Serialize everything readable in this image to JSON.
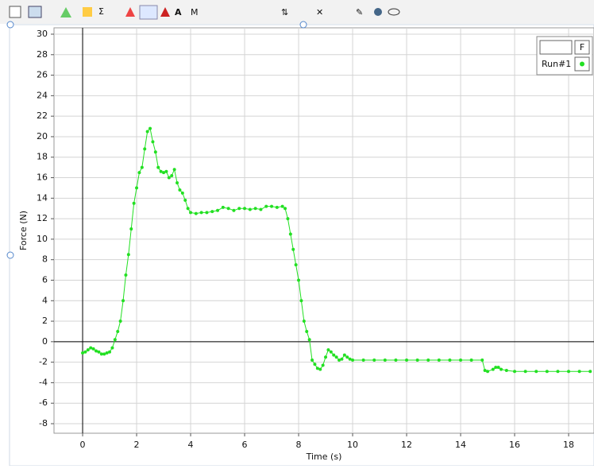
{
  "chart_data": {
    "type": "line",
    "xlabel": "Time (s)",
    "ylabel": "Force (N)",
    "legend_header": "F",
    "x": [
      0,
      0.1,
      0.2,
      0.3,
      0.4,
      0.5,
      0.6,
      0.7,
      0.8,
      0.9,
      1.0,
      1.1,
      1.2,
      1.3,
      1.4,
      1.5,
      1.6,
      1.7,
      1.8,
      1.9,
      2.0,
      2.1,
      2.2,
      2.3,
      2.4,
      2.5,
      2.6,
      2.7,
      2.8,
      2.9,
      3.0,
      3.1,
      3.2,
      3.3,
      3.4,
      3.5,
      3.6,
      3.7,
      3.8,
      3.9,
      4.0,
      4.2,
      4.4,
      4.6,
      4.8,
      5.0,
      5.2,
      5.4,
      5.6,
      5.8,
      6.0,
      6.2,
      6.4,
      6.6,
      6.8,
      7.0,
      7.2,
      7.4,
      7.5,
      7.6,
      7.7,
      7.8,
      7.9,
      8.0,
      8.1,
      8.2,
      8.3,
      8.4,
      8.5,
      8.6,
      8.7,
      8.8,
      8.9,
      9.0,
      9.1,
      9.2,
      9.3,
      9.4,
      9.5,
      9.6,
      9.7,
      9.8,
      9.9,
      10.0,
      10.4,
      10.8,
      11.2,
      11.6,
      12.0,
      12.4,
      12.8,
      13.2,
      13.6,
      14.0,
      14.4,
      14.8,
      14.9,
      15.0,
      15.2,
      15.3,
      15.4,
      15.5,
      15.7,
      16.0,
      16.4,
      16.8,
      17.2,
      17.6,
      18.0,
      18.4,
      18.8
    ],
    "series": [
      {
        "name": "Run#1",
        "color": "#22e022",
        "values": [
          -1.1,
          -1.0,
          -0.8,
          -0.6,
          -0.7,
          -0.9,
          -1.0,
          -1.2,
          -1.2,
          -1.1,
          -1.0,
          -0.6,
          0.2,
          1.0,
          2.0,
          4.0,
          6.5,
          8.5,
          11.0,
          13.5,
          15.0,
          16.5,
          17.0,
          18.8,
          20.5,
          20.8,
          19.5,
          18.5,
          17.0,
          16.6,
          16.5,
          16.6,
          16.0,
          16.2,
          16.8,
          15.5,
          14.8,
          14.5,
          13.8,
          13.0,
          12.6,
          12.5,
          12.6,
          12.6,
          12.7,
          12.8,
          13.1,
          13.0,
          12.8,
          13.0,
          13.0,
          12.9,
          13.0,
          12.9,
          13.2,
          13.2,
          13.1,
          13.2,
          13.0,
          12.0,
          10.5,
          9.0,
          7.5,
          6.0,
          4.0,
          2.0,
          1.0,
          0.2,
          -1.8,
          -2.2,
          -2.6,
          -2.7,
          -2.3,
          -1.5,
          -0.8,
          -1.0,
          -1.3,
          -1.5,
          -1.8,
          -1.7,
          -1.3,
          -1.5,
          -1.7,
          -1.8,
          -1.8,
          -1.8,
          -1.8,
          -1.8,
          -1.8,
          -1.8,
          -1.8,
          -1.8,
          -1.8,
          -1.8,
          -1.8,
          -1.8,
          -2.8,
          -2.9,
          -2.7,
          -2.5,
          -2.5,
          -2.7,
          -2.8,
          -2.9,
          -2.9,
          -2.9,
          -2.9,
          -2.9,
          -2.9,
          -2.9,
          -2.9
        ]
      }
    ],
    "xlim": [
      -1.06,
      18.94
    ],
    "ylim": [
      -8.93,
      30.62
    ],
    "xticks": [
      0,
      2,
      4,
      6,
      8,
      10,
      12,
      14,
      16,
      18
    ],
    "yticks": [
      -8,
      -6,
      -4,
      -2,
      0,
      2,
      4,
      6,
      8,
      10,
      12,
      14,
      16,
      18,
      20,
      22,
      24,
      26,
      28,
      30
    ],
    "grid": true
  }
}
